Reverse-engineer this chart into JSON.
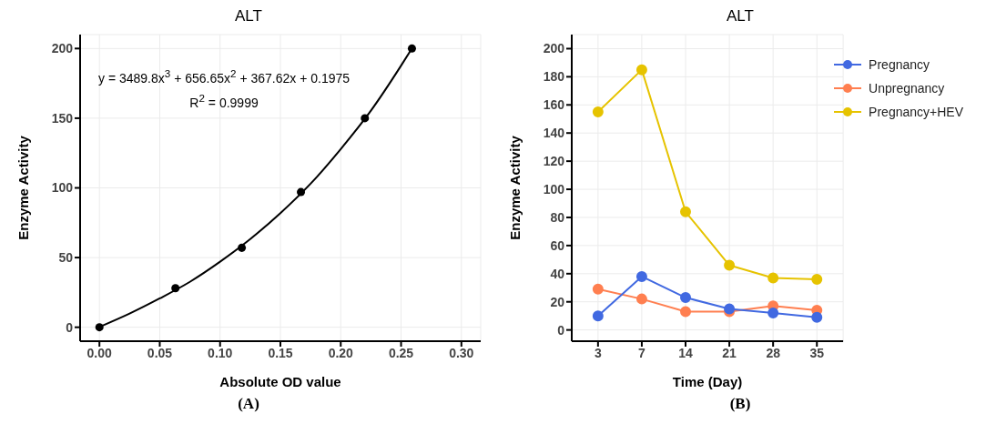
{
  "chart_data": [
    {
      "type": "scatter",
      "title": "ALT",
      "xlabel": "Absolute OD value",
      "ylabel": "Enzyme Activity",
      "xlim": [
        -0.016,
        0.316
      ],
      "xticks": [
        {
          "value": 0,
          "label": "0.00"
        },
        {
          "value": 0.05,
          "label": "0.05"
        },
        {
          "value": 0.1,
          "label": "0.10"
        },
        {
          "value": 0.15,
          "label": "0.15"
        },
        {
          "value": 0.2,
          "label": "0.20"
        },
        {
          "value": 0.25,
          "label": "0.25"
        },
        {
          "value": 0.3,
          "label": "0.30"
        }
      ],
      "ylim": [
        -10,
        210
      ],
      "yticks": [
        0,
        50,
        100,
        150,
        200
      ],
      "grid": true,
      "marker": "circle",
      "series": [
        {
          "color": "#000000",
          "x": [
            0,
            0.063,
            0.118,
            0.167,
            0.22,
            0.259
          ],
          "values": [
            0,
            28,
            57,
            97,
            150,
            200
          ]
        },
        {
          "type": "line",
          "marker": "none",
          "color": "#000000",
          "x": [
            0,
            0.025,
            0.05,
            0.075,
            0.1,
            0.125,
            0.15,
            0.175,
            0.2,
            0.225,
            0.25,
            0.259
          ],
          "values": [
            0.2,
            9.8,
            20.7,
            32.6,
            47,
            63.3,
            81.9,
            103,
            127.9,
            155.4,
            187.7,
            200.1
          ]
        }
      ],
      "annotations": [
        "y = 3489.8x$^{3}$ + 656.65x$^{2}$ + 367.62x + 0.1975",
        "R$^{2}$ = 0.9999",
        "(A)"
      ]
    },
    {
      "type": "line",
      "title": "ALT",
      "xlabel": "Time (Day)",
      "ylabel": "Enzyme Activity",
      "categories": [
        "3",
        "7",
        "14",
        "21",
        "28",
        "35"
      ],
      "ylim": [
        -8,
        210
      ],
      "yticks": [
        0,
        20,
        40,
        60,
        80,
        100,
        120,
        140,
        160,
        180,
        200
      ],
      "grid": true,
      "legend": "top right",
      "marker": "circle",
      "series": [
        {
          "name": "Pregnancy",
          "color": "#4169e1",
          "values": [
            10,
            38,
            23,
            15,
            12,
            9
          ]
        },
        {
          "name": "Unpregnancy",
          "color": "#ff7f50",
          "values": [
            29,
            22,
            13,
            13,
            17,
            14
          ]
        },
        {
          "name": "Pregnancy+HEV",
          "color": "#e6c300",
          "values": [
            155,
            185,
            84,
            46,
            37,
            36
          ]
        }
      ],
      "annotations": [
        "(B)"
      ]
    }
  ]
}
